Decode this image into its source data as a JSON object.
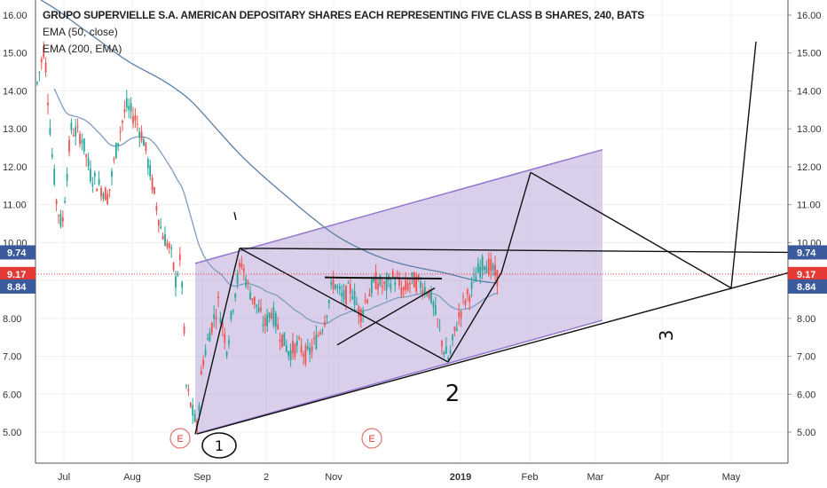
{
  "chart_data": {
    "type": "candlestick",
    "title": "GRUPO SUPERVIELLE S.A. AMERICAN DEPOSITARY SHARES EACH REPRESENTING FIVE CLASS B SHARES, 240, BATS",
    "indicators": [
      "EMA (50, close)",
      "EMA (200, EMA)"
    ],
    "y_ticks": [
      "16.00",
      "15.00",
      "14.00",
      "13.00",
      "12.00",
      "11.00",
      "10.00",
      "9.00",
      "8.00",
      "7.00",
      "6.00",
      "5.00"
    ],
    "x_ticks": [
      "Jul",
      "Aug",
      "Sep",
      "2",
      "Nov",
      "2019",
      "Feb",
      "Mar",
      "Apr",
      "May"
    ],
    "ylim": [
      4.3,
      16.3
    ],
    "price_labels": [
      {
        "text": "9.74",
        "value": 9.74,
        "color": "#3a5a9c"
      },
      {
        "text": "9.17",
        "value": 9.17,
        "color": "#e53935"
      },
      {
        "text": "8.84",
        "value": 8.84,
        "color": "#3a5a9c"
      }
    ],
    "current_price": 9.17,
    "bull_color": "#26a69a",
    "bear_color": "#ef5350",
    "channel_fill": "#b9a8d9",
    "annotations": {
      "earnings_markers": [
        "E",
        "E"
      ],
      "hand_labels": [
        "1",
        "2",
        "3"
      ]
    }
  }
}
